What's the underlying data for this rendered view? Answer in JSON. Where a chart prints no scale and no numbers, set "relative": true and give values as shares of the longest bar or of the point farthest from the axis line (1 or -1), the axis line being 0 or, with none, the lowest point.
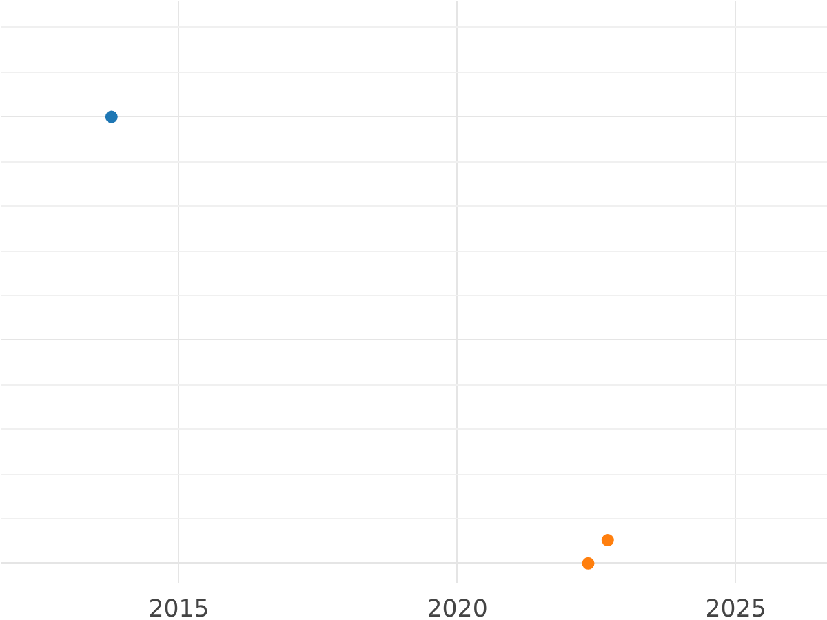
{
  "chart_data": {
    "type": "scatter",
    "relative": true,
    "xlim": [
      2011.8,
      2026.65
    ],
    "xticks": [
      2015,
      2020,
      2025
    ],
    "grid": true,
    "marker": "circle",
    "series": [
      {
        "color": "#1f77b4",
        "x": [
          2013.79
        ],
        "values": [
          1
        ]
      },
      {
        "color": "#ff7f0e",
        "x": [
          2022.35,
          2022.7
        ],
        "values": [
          0,
          0.052
        ]
      }
    ]
  }
}
